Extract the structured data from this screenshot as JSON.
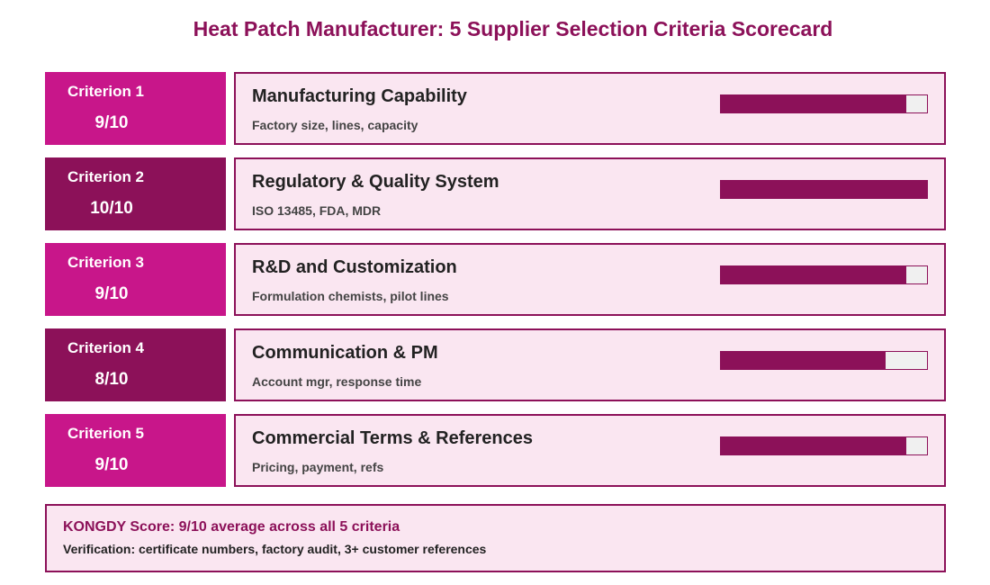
{
  "title": "Heat Patch Manufacturer: 5 Supplier Selection Criteria Scorecard",
  "colors": {
    "accent_light": "#c8168a",
    "accent_dark": "#8c1159",
    "card_bg": "#fae6f1",
    "bar_track": "#f0f0f0"
  },
  "criteria": [
    {
      "label": "Criterion 1",
      "score": "9/10",
      "score_fraction": 0.9,
      "name": "Manufacturing Capability",
      "desc": "Factory size, lines, capacity"
    },
    {
      "label": "Criterion 2",
      "score": "10/10",
      "score_fraction": 1.0,
      "name": "Regulatory & Quality System",
      "desc": "ISO 13485, FDA, MDR"
    },
    {
      "label": "Criterion 3",
      "score": "9/10",
      "score_fraction": 0.9,
      "name": "R&D and Customization",
      "desc": "Formulation chemists, pilot lines"
    },
    {
      "label": "Criterion 4",
      "score": "8/10",
      "score_fraction": 0.8,
      "name": "Communication & PM",
      "desc": "Account mgr, response time"
    },
    {
      "label": "Criterion 5",
      "score": "9/10",
      "score_fraction": 0.9,
      "name": "Commercial Terms & References",
      "desc": "Pricing, payment, refs"
    }
  ],
  "summary": {
    "line1": "KONGDY Score: 9/10 average across all 5 criteria",
    "line2": "Verification: certificate numbers, factory audit, 3+ customer references"
  }
}
